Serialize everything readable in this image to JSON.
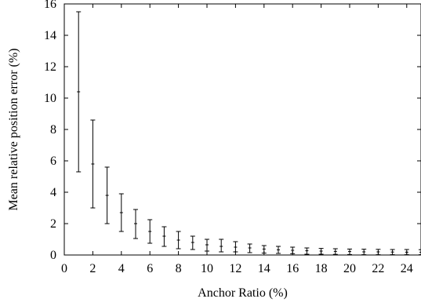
{
  "chart_data": {
    "type": "scatter",
    "style": "errorbar",
    "title": "",
    "xlabel": "Anchor Ratio (%)",
    "ylabel": "Mean relative position error (%)",
    "xlim": [
      0,
      25
    ],
    "ylim": [
      0,
      16
    ],
    "xticks": [
      0,
      2,
      4,
      6,
      8,
      10,
      12,
      14,
      16,
      18,
      20,
      22,
      24
    ],
    "yticks": [
      0,
      2,
      4,
      6,
      8,
      10,
      12,
      14,
      16
    ],
    "grid": false,
    "legend": "none",
    "colors": {
      "marks": "#000000",
      "frame": "#000000",
      "background": "#ffffff"
    },
    "series": [
      {
        "x": [
          1,
          2,
          3,
          4,
          5,
          6,
          7,
          8,
          9,
          10,
          11,
          12,
          13,
          14,
          15,
          16,
          17,
          18,
          19,
          20,
          21,
          22,
          23,
          24,
          25
        ],
        "y": [
          10.4,
          5.8,
          3.8,
          2.7,
          2.0,
          1.5,
          1.2,
          0.95,
          0.8,
          0.65,
          0.55,
          0.5,
          0.45,
          0.38,
          0.33,
          0.3,
          0.27,
          0.25,
          0.23,
          0.22,
          0.2,
          0.2,
          0.19,
          0.18,
          0.18
        ],
        "yerr_low": [
          5.3,
          3.0,
          2.0,
          1.5,
          1.05,
          0.75,
          0.55,
          0.4,
          0.35,
          0.25,
          0.2,
          0.2,
          0.15,
          0.12,
          0.1,
          0.08,
          0.05,
          0.05,
          0.04,
          0.03,
          0.02,
          0.02,
          0.02,
          0.02,
          0.02
        ],
        "yerr_high": [
          15.5,
          8.6,
          5.6,
          3.9,
          2.9,
          2.25,
          1.8,
          1.5,
          1.2,
          1.0,
          1.0,
          0.85,
          0.7,
          0.6,
          0.55,
          0.5,
          0.45,
          0.42,
          0.4,
          0.38,
          0.37,
          0.36,
          0.35,
          0.35,
          0.34
        ]
      }
    ]
  }
}
